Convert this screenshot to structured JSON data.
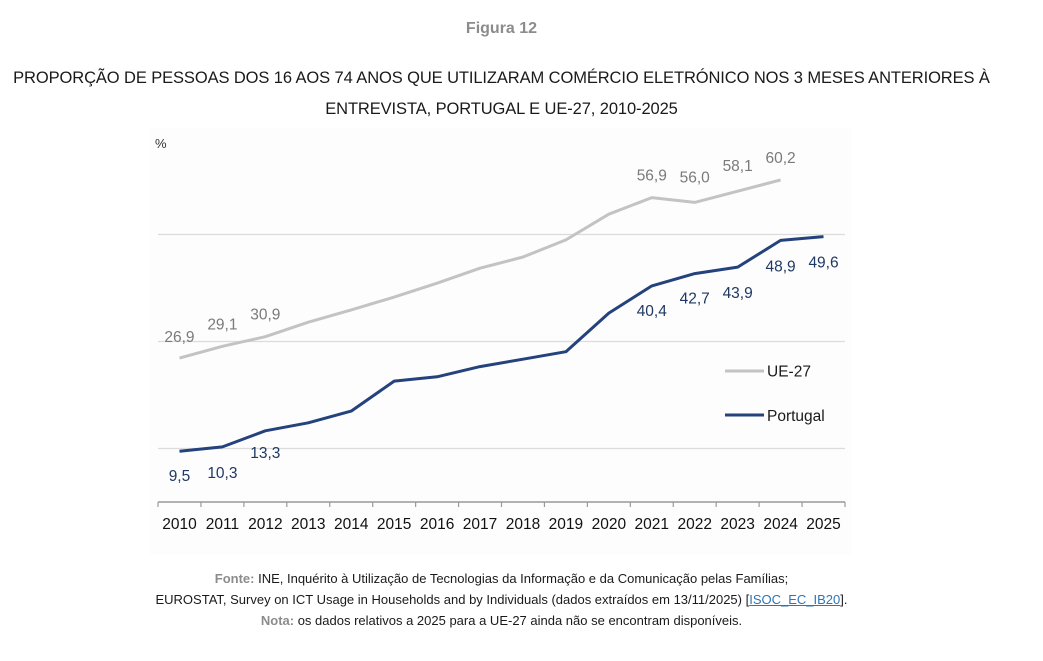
{
  "figure": {
    "label": "Figura 12",
    "title_line1": "PROPORÇÃO DE PESSOAS DOS 16 AOS 74 ANOS QUE UTILIZARAM COMÉRCIO ELETRÓNICO NOS 3 MESES ANTERIORES À",
    "title_line2": "ENTREVISTA, PORTUGAL E UE-27, 2010-2025"
  },
  "colors": {
    "ue27": "#c3c3c3",
    "portugal": "#24427c",
    "gridline": "#dcdcdc",
    "axis": "#9a9a9a"
  },
  "chart_data": {
    "type": "line",
    "title": "PROPORÇÃO DE PESSOAS DOS 16 AOS 74 ANOS QUE UTILIZARAM COMÉRCIO ELETRÓNICO NOS 3 MESES ANTERIORES À ENTREVISTA, PORTUGAL E UE-27, 2010-2025",
    "xlabel": "",
    "ylabel": "%",
    "ylim": [
      0,
      70
    ],
    "gridlines_at": [
      10,
      30,
      50
    ],
    "y_tick_labels_shown": false,
    "legend_position": "right",
    "categories": [
      "2010",
      "2011",
      "2012",
      "2013",
      "2014",
      "2015",
      "2016",
      "2017",
      "2018",
      "2019",
      "2020",
      "2021",
      "2022",
      "2023",
      "2024",
      "2025"
    ],
    "series": [
      {
        "name": "UE-27",
        "values": [
          26.9,
          29.1,
          30.9,
          33.6,
          35.9,
          38.3,
          40.9,
          43.7,
          45.8,
          49.0,
          53.8,
          56.9,
          56.0,
          58.1,
          60.2,
          null
        ],
        "data_labels": {
          "0": "26,9",
          "1": "29,1",
          "2": "30,9",
          "11": "56,9",
          "12": "56,0",
          "13": "58,1",
          "14": "60,2"
        }
      },
      {
        "name": "Portugal",
        "values": [
          9.5,
          10.3,
          13.3,
          14.8,
          17.0,
          22.6,
          23.4,
          25.3,
          26.7,
          28.1,
          35.3,
          40.4,
          42.7,
          43.9,
          48.9,
          49.6
        ],
        "data_labels": {
          "0": "9,5",
          "1": "10,3",
          "2": "13,3",
          "11": "40,4",
          "12": "42,7",
          "13": "43,9",
          "14": "48,9",
          "15": "49,6"
        }
      }
    ]
  },
  "footer": {
    "source_key": "Fonte:",
    "source_line1": " INE, Inquérito à Utilização de Tecnologias da Informação e da Comunicação pelas Famílias;",
    "source_line2": "EUROSTAT, Survey on ICT Usage in Households and by Individuals (dados extraídos em 13/11/2025) [",
    "source_link": "ISOC_EC_IB20",
    "source_line2_end": "].",
    "note_key": "Nota:",
    "note_text": " os dados relativos a 2025 para a UE-27 ainda não se encontram disponíveis."
  }
}
